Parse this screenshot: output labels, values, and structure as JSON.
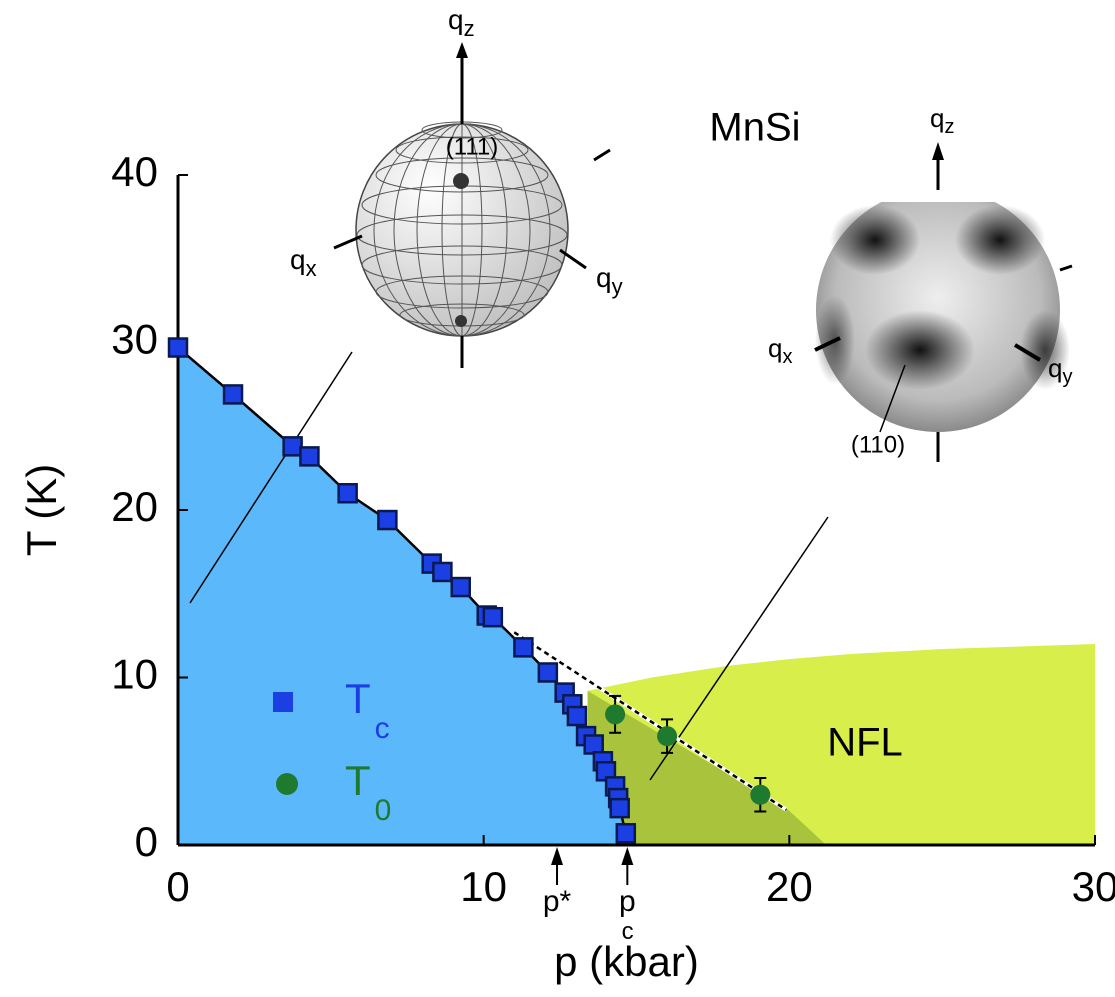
{
  "chart_data": {
    "type": "scatter",
    "title": "MnSi",
    "xlabel": "p (kbar)",
    "ylabel": "T (K)",
    "xlim": [
      0,
      30
    ],
    "ylim": [
      0,
      40
    ],
    "xticks": [
      0,
      10,
      20,
      30
    ],
    "yticks": [
      0,
      10,
      20,
      30,
      40
    ],
    "grid": false,
    "series": [
      {
        "name": "T",
        "name_sub": "c",
        "color": "#1b3fe3",
        "marker": "square",
        "line": true,
        "x": [
          0,
          1.8,
          3.75,
          4.3,
          5.55,
          6.85,
          8.3,
          8.65,
          9.25,
          10.1,
          10.3,
          11.3,
          12.1,
          12.65,
          12.9,
          13.05,
          13.35,
          13.6,
          13.9,
          14.0,
          14.3,
          14.4,
          14.45,
          14.65
        ],
        "values": [
          29.7,
          26.9,
          23.8,
          23.2,
          21.0,
          19.4,
          16.8,
          16.3,
          15.4,
          13.7,
          13.6,
          11.8,
          10.3,
          9.1,
          8.4,
          7.7,
          6.5,
          6.0,
          5.0,
          4.4,
          3.5,
          2.8,
          2.2,
          0.7
        ]
      },
      {
        "name": "T",
        "name_sub": "0",
        "color": "#1e7a2e",
        "marker": "circle",
        "line": false,
        "x": [
          14.3,
          16.0,
          19.05
        ],
        "values": [
          7.8,
          6.5,
          3.0
        ],
        "errors": [
          1.1,
          1.0,
          1.0
        ]
      }
    ],
    "ordered_region": {
      "color": "#5bb8fb"
    },
    "nfl_region": {
      "label": "NFL",
      "color": "#d8ee4a",
      "p": [
        13.4,
        13.4,
        15.5,
        18,
        20,
        22,
        25,
        30,
        30
      ],
      "T": [
        0,
        9.2,
        10.0,
        10.7,
        11.1,
        11.4,
        11.7,
        12.0,
        0
      ]
    },
    "crossover_region": {
      "color": "#a9c43c",
      "p": [
        13.4,
        19.9,
        20.5,
        21.2,
        13.4
      ],
      "T": [
        9.2,
        2.2,
        1.2,
        0,
        0
      ]
    },
    "dashed_fit": {
      "p": [
        11,
        19.9
      ],
      "T": [
        12.7,
        2.1
      ]
    },
    "pressure_markers": [
      {
        "text": "p*",
        "sub": "",
        "p": 12.4
      },
      {
        "text": "p",
        "sub": "c",
        "p": 14.7
      }
    ],
    "insets": [
      {
        "axes": [
          {
            "base": "q",
            "sub": "z"
          },
          {
            "base": "q",
            "sub": "x"
          },
          {
            "base": "q",
            "sub": "y"
          }
        ],
        "direction": "(111)"
      },
      {
        "axes": [
          {
            "base": "q",
            "sub": "z"
          },
          {
            "base": "q",
            "sub": "x"
          },
          {
            "base": "q",
            "sub": "y"
          }
        ],
        "direction": "(110)"
      }
    ]
  }
}
